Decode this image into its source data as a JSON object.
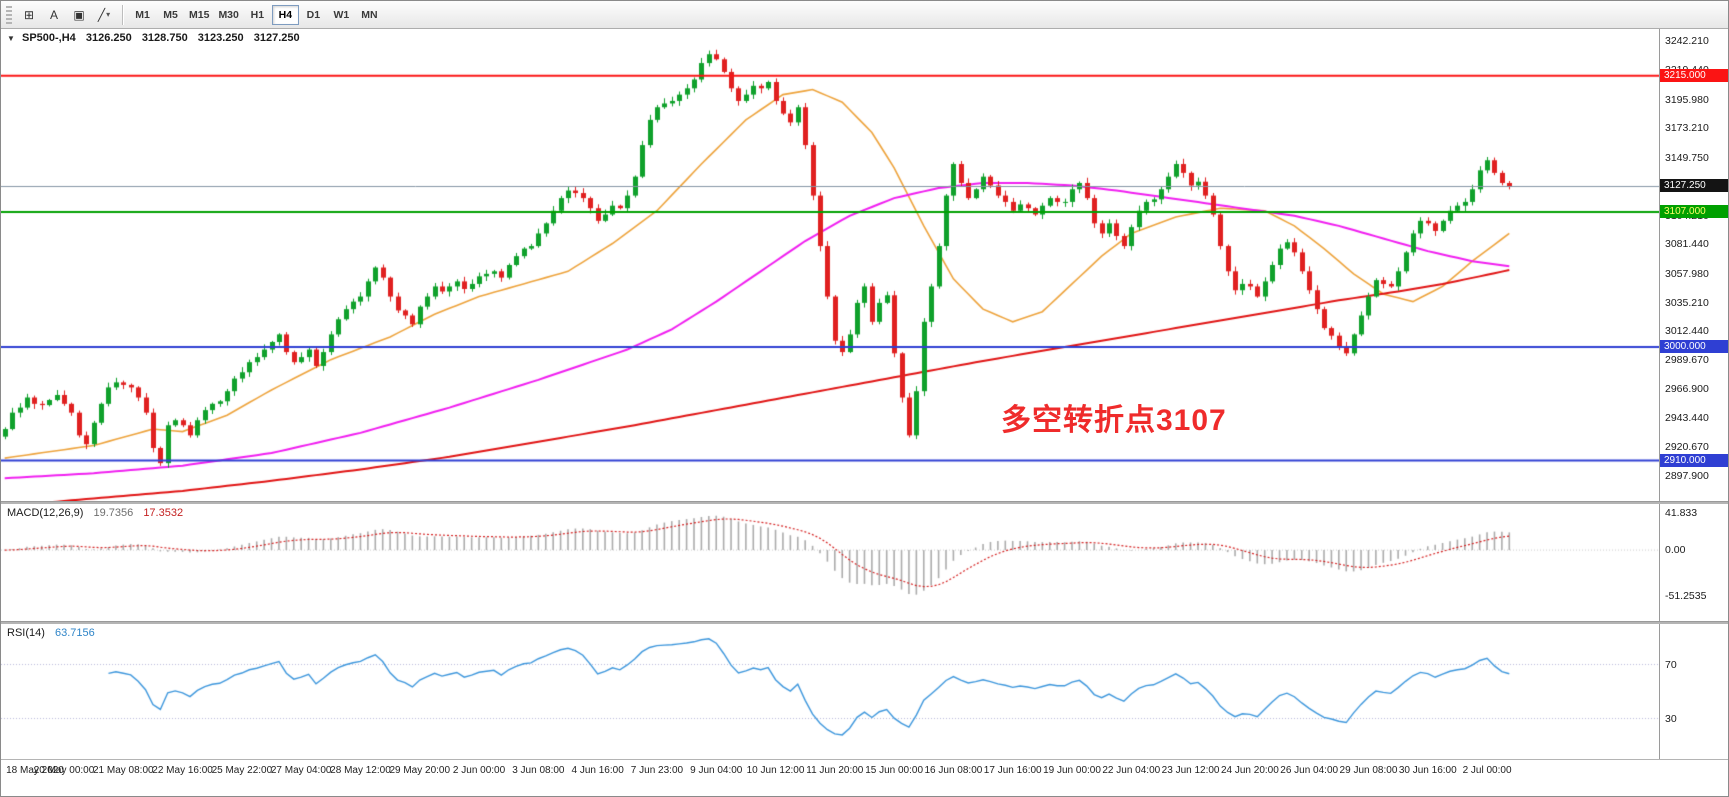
{
  "toolbar": {
    "tools": [
      {
        "name": "grid",
        "glyph": "⊞"
      },
      {
        "name": "cursor-a",
        "glyph": "A"
      },
      {
        "name": "text-frame",
        "glyph": "▣"
      },
      {
        "name": "shapes",
        "glyph": "╱",
        "caret": "▾"
      }
    ],
    "timeframes": [
      {
        "label": "M1"
      },
      {
        "label": "M5"
      },
      {
        "label": "M15"
      },
      {
        "label": "M30"
      },
      {
        "label": "H1"
      },
      {
        "label": "H4",
        "active": true
      },
      {
        "label": "D1"
      },
      {
        "label": "W1"
      },
      {
        "label": "MN"
      }
    ]
  },
  "main": {
    "header": {
      "collapse_glyph": "▼",
      "symbol": "SP500-,H4",
      "open": "3126.250",
      "high": "3128.750",
      "low": "3123.250",
      "close": "3127.250"
    },
    "annotation": {
      "text": "多空转折点3107",
      "color": "#ef2b2b"
    },
    "axis_ticks": [
      "3242.210",
      "3219.440",
      "3195.980",
      "3173.210",
      "3149.750",
      "3126.980",
      "3104.210",
      "3081.440",
      "3057.980",
      "3035.210",
      "3012.440",
      "2989.670",
      "2966.900",
      "2943.440",
      "2920.670",
      "2897.900"
    ],
    "badges": [
      {
        "text": "3215.000",
        "value": 3215.0,
        "bg": "#fb1414",
        "fg": "#ffffff"
      },
      {
        "text": "3127.250",
        "value": 3127.25,
        "bg": "#141414",
        "fg": "#ffffff"
      },
      {
        "text": "3107.000",
        "value": 3107.0,
        "bg": "#00a000",
        "fg": "#ffff66"
      },
      {
        "text": "3000.000",
        "value": 3000.0,
        "bg": "#2f3fd3",
        "fg": "#ffffff"
      },
      {
        "text": "2910.000",
        "value": 2910.0,
        "bg": "#2f3fd3",
        "fg": "#ffffff"
      }
    ]
  },
  "macd_header": {
    "name": "MACD(12,26,9)",
    "main_value": "19.7356",
    "signal_value": "17.3532"
  },
  "rsi_header": {
    "name": "RSI(14)",
    "value": "63.7156"
  },
  "chart_data": [
    {
      "type": "candlestick",
      "title": "SP500-,H4",
      "timeframe": "H4",
      "y_range": [
        2878,
        3252
      ],
      "label_every_n_candles": 8,
      "x_labels": [
        "18 May 2020",
        "20 May 00:00",
        "21 May 08:00",
        "22 May 16:00",
        "25 May 22:00",
        "27 May 04:00",
        "28 May 12:00",
        "29 May 20:00",
        "2 Jun 00:00",
        "3 Jun 08:00",
        "4 Jun 16:00",
        "7 Jun 23:00",
        "9 Jun 04:00",
        "10 Jun 12:00",
        "11 Jun 20:00",
        "15 Jun 00:00",
        "16 Jun 08:00",
        "17 Jun 16:00",
        "19 Jun 00:00",
        "22 Jun 04:00",
        "23 Jun 12:00",
        "24 Jun 20:00",
        "26 Jun 04:00",
        "29 Jun 08:00",
        "30 Jun 16:00",
        "2 Jul 00:00"
      ],
      "closes": [
        2935,
        2948,
        2952,
        2960,
        2955,
        2954,
        2958,
        2962,
        2955,
        2948,
        2930,
        2923,
        2940,
        2955,
        2968,
        2972,
        2970,
        2968,
        2960,
        2948,
        2920,
        2908,
        2938,
        2942,
        2938,
        2930,
        2942,
        2950,
        2955,
        2957,
        2965,
        2975,
        2980,
        2988,
        2992,
        2998,
        3004,
        3010,
        2996,
        2988,
        2992,
        2998,
        2985,
        2996,
        3010,
        3022,
        3030,
        3036,
        3040,
        3052,
        3063,
        3055,
        3040,
        3029,
        3025,
        3018,
        3032,
        3040,
        3048,
        3044,
        3048,
        3052,
        3046,
        3050,
        3056,
        3058,
        3060,
        3055,
        3065,
        3072,
        3078,
        3080,
        3090,
        3098,
        3108,
        3118,
        3124,
        3122,
        3118,
        3110,
        3100,
        3105,
        3112,
        3110,
        3120,
        3135,
        3160,
        3180,
        3190,
        3193,
        3195,
        3200,
        3205,
        3212,
        3225,
        3232,
        3228,
        3218,
        3205,
        3195,
        3200,
        3207,
        3205,
        3210,
        3195,
        3185,
        3178,
        3190,
        3160,
        3120,
        3080,
        3040,
        3005,
        2996,
        3010,
        3035,
        3048,
        3020,
        3035,
        3041,
        2995,
        2960,
        2930,
        2965,
        3020,
        3048,
        3080,
        3120,
        3145,
        3130,
        3118,
        3125,
        3135,
        3128,
        3120,
        3115,
        3108,
        3113,
        3110,
        3105,
        3112,
        3118,
        3115,
        3115,
        3125,
        3130,
        3118,
        3098,
        3090,
        3098,
        3088,
        3080,
        3095,
        3108,
        3115,
        3117,
        3125,
        3135,
        3145,
        3138,
        3128,
        3131,
        3120,
        3105,
        3080,
        3060,
        3045,
        3050,
        3048,
        3040,
        3052,
        3065,
        3078,
        3083,
        3075,
        3060,
        3045,
        3030,
        3015,
        3009,
        3000,
        2995,
        3010,
        3025,
        3040,
        3053,
        3050,
        3048,
        3060,
        3075,
        3090,
        3100,
        3098,
        3092,
        3100,
        3108,
        3112,
        3115,
        3125,
        3140,
        3148,
        3138,
        3130,
        3127
      ],
      "last_ohlc": {
        "open": 3126.25,
        "high": 3128.75,
        "low": 3123.25,
        "close": 3127.25
      },
      "current_price": 3127.25,
      "bull_color": "#0fa12b",
      "bear_color": "#e02020",
      "price_line_color": "#8494a4",
      "horizontal_levels": [
        {
          "value": 3215,
          "color": "#fb1414",
          "width": 2
        },
        {
          "value": 3107,
          "color": "#00a000",
          "width": 2
        },
        {
          "value": 3000,
          "color": "#2f3fd3",
          "width": 2
        },
        {
          "value": 2910,
          "color": "#2f3fd3",
          "width": 2
        }
      ],
      "moving_averages": [
        {
          "name": "ma-fast",
          "color": "#eda33c",
          "width": 1.6,
          "points": [
            [
              0,
              2912
            ],
            [
              12,
              2922
            ],
            [
              20,
              2935
            ],
            [
              24,
              2933
            ],
            [
              30,
              2946
            ],
            [
              36,
              2966
            ],
            [
              44,
              2990
            ],
            [
              52,
              3008
            ],
            [
              58,
              3026
            ],
            [
              64,
              3040
            ],
            [
              70,
              3050
            ],
            [
              76,
              3060
            ],
            [
              82,
              3082
            ],
            [
              88,
              3108
            ],
            [
              94,
              3145
            ],
            [
              100,
              3180
            ],
            [
              105,
              3200
            ],
            [
              109,
              3204
            ],
            [
              113,
              3194
            ],
            [
              117,
              3170
            ],
            [
              120,
              3142
            ],
            [
              124,
              3096
            ],
            [
              128,
              3054
            ],
            [
              132,
              3030
            ],
            [
              136,
              3020
            ],
            [
              140,
              3028
            ],
            [
              144,
              3050
            ],
            [
              148,
              3072
            ],
            [
              152,
              3090
            ],
            [
              158,
              3103
            ],
            [
              164,
              3110
            ],
            [
              170,
              3108
            ],
            [
              174,
              3096
            ],
            [
              178,
              3078
            ],
            [
              182,
              3058
            ],
            [
              186,
              3042
            ],
            [
              190,
              3036
            ],
            [
              194,
              3048
            ],
            [
              198,
              3068
            ],
            [
              203,
              3090
            ]
          ]
        },
        {
          "name": "ma-medium",
          "color": "#f01ef0",
          "width": 2,
          "points": [
            [
              0,
              2896
            ],
            [
              12,
              2900
            ],
            [
              24,
              2906
            ],
            [
              36,
              2916
            ],
            [
              48,
              2932
            ],
            [
              60,
              2952
            ],
            [
              72,
              2974
            ],
            [
              84,
              2998
            ],
            [
              90,
              3014
            ],
            [
              96,
              3036
            ],
            [
              102,
              3060
            ],
            [
              108,
              3084
            ],
            [
              114,
              3104
            ],
            [
              120,
              3118
            ],
            [
              126,
              3126
            ],
            [
              132,
              3130
            ],
            [
              138,
              3130
            ],
            [
              144,
              3128
            ],
            [
              150,
              3124
            ],
            [
              156,
              3119
            ],
            [
              162,
              3114
            ],
            [
              168,
              3109
            ],
            [
              174,
              3104
            ],
            [
              180,
              3096
            ],
            [
              186,
              3086
            ],
            [
              192,
              3076
            ],
            [
              198,
              3068
            ],
            [
              203,
              3064
            ]
          ]
        },
        {
          "name": "ma-slow",
          "color": "#e01414",
          "width": 2,
          "points": [
            [
              0,
              2874
            ],
            [
              12,
              2880
            ],
            [
              24,
              2886
            ],
            [
              36,
              2894
            ],
            [
              48,
              2903
            ],
            [
              60,
              2913
            ],
            [
              72,
              2925
            ],
            [
              84,
              2937
            ],
            [
              96,
              2950
            ],
            [
              108,
              2963
            ],
            [
              120,
              2976
            ],
            [
              132,
              2989
            ],
            [
              144,
              3001
            ],
            [
              156,
              3013
            ],
            [
              168,
              3025
            ],
            [
              180,
              3037
            ],
            [
              188,
              3044
            ],
            [
              194,
              3050
            ],
            [
              199,
              3056
            ],
            [
              203,
              3061
            ]
          ]
        }
      ]
    },
    {
      "type": "macd",
      "label": "MACD(12,26,9)",
      "params": [
        12,
        26,
        9
      ],
      "main": 19.7356,
      "signal": 17.3532,
      "y_range": [
        -80,
        52
      ],
      "axis_ticks": [
        {
          "text": "41.833",
          "value": 41.833
        },
        {
          "text": "0.00",
          "value": 0
        },
        {
          "text": "-51.2535",
          "value": -51.2535
        }
      ],
      "histogram_color": "#ababab",
      "signal_color": "#d42020"
    },
    {
      "type": "rsi",
      "label": "RSI(14)",
      "period": 14,
      "value": 63.7156,
      "y_range": [
        0,
        100
      ],
      "levels": [
        70,
        30
      ],
      "axis_ticks": [
        {
          "text": "70",
          "value": 70
        },
        {
          "text": "30",
          "value": 30
        }
      ],
      "line_color": "#3c96dc",
      "level_color": "#b8b8d8"
    }
  ]
}
